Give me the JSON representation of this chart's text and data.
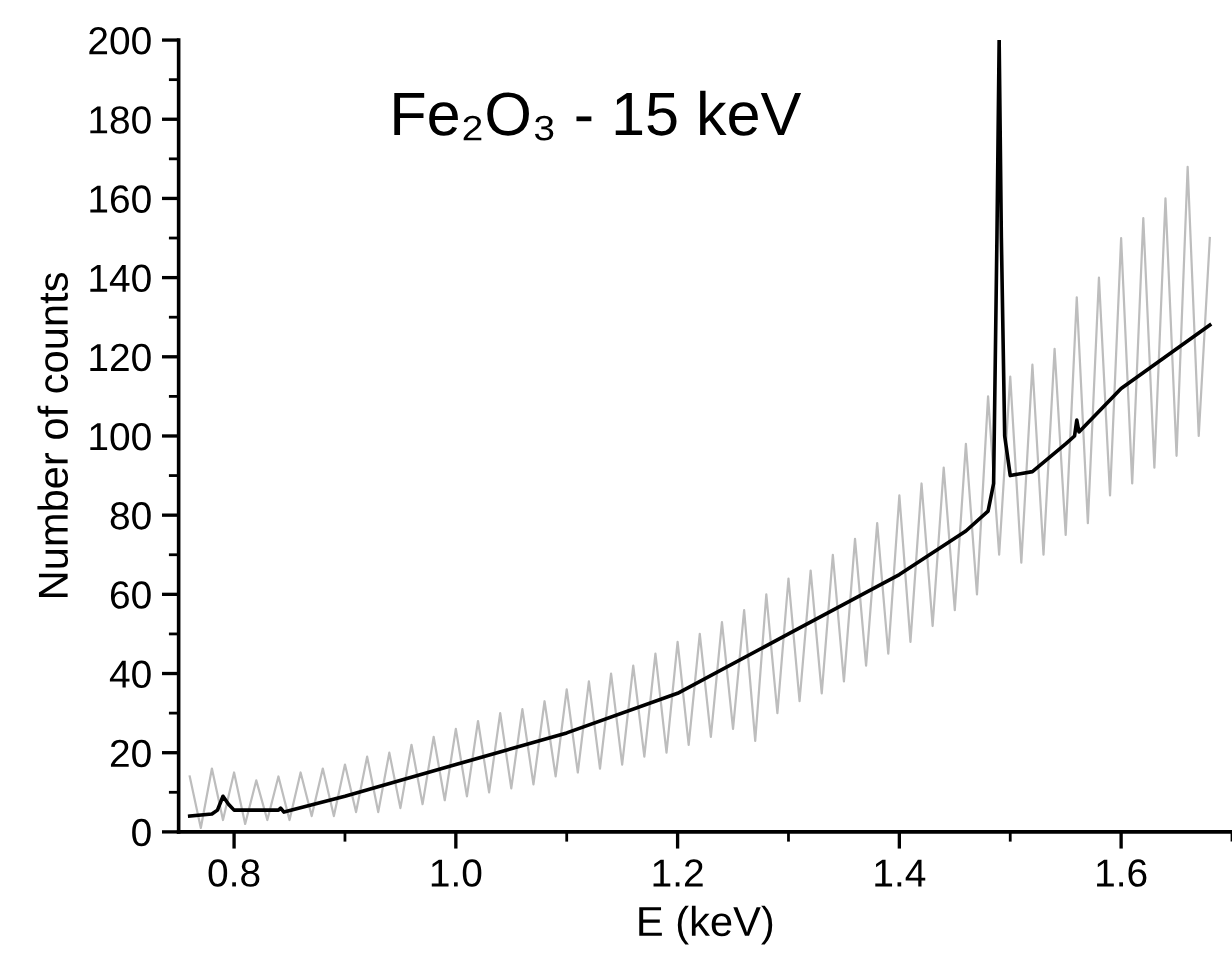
{
  "chart_data": {
    "type": "line",
    "xlabel": "E (keV)",
    "ylabel": "Number of counts",
    "annotations": [
      "Fe₂O₃ - 15 keV"
    ],
    "xlim": [
      0.75,
      1.7
    ],
    "xticks": [
      {
        "value": 0.8,
        "label": "0.8"
      },
      {
        "value": 1.0,
        "label": "1.0"
      },
      {
        "value": 1.2,
        "label": "1.2"
      },
      {
        "value": 1.4,
        "label": "1.4"
      },
      {
        "value": 1.6,
        "label": "1.6"
      }
    ],
    "ylim": [
      0,
      200
    ],
    "yticks": [
      0,
      20,
      40,
      60,
      80,
      100,
      120,
      140,
      160,
      180,
      200
    ],
    "grid": false,
    "legend": false,
    "marker": "none",
    "line_style": "solid",
    "series": [
      {
        "color": "#bdbdbd",
        "x": [
          0.76,
          0.77,
          0.78,
          0.79,
          0.8,
          0.81,
          0.82,
          0.83,
          0.84,
          0.85,
          0.86,
          0.87,
          0.88,
          0.89,
          0.9,
          0.91,
          0.92,
          0.93,
          0.94,
          0.95,
          0.96,
          0.97,
          0.98,
          0.99,
          1.0,
          1.01,
          1.02,
          1.03,
          1.04,
          1.05,
          1.06,
          1.07,
          1.08,
          1.09,
          1.1,
          1.11,
          1.12,
          1.13,
          1.14,
          1.15,
          1.16,
          1.17,
          1.18,
          1.19,
          1.2,
          1.21,
          1.22,
          1.23,
          1.24,
          1.25,
          1.26,
          1.27,
          1.28,
          1.29,
          1.3,
          1.31,
          1.32,
          1.33,
          1.34,
          1.35,
          1.36,
          1.37,
          1.38,
          1.39,
          1.4,
          1.41,
          1.42,
          1.43,
          1.44,
          1.45,
          1.46,
          1.47,
          1.48,
          1.49,
          1.5,
          1.51,
          1.52,
          1.53,
          1.54,
          1.55,
          1.56,
          1.57,
          1.58,
          1.59,
          1.6,
          1.61,
          1.62,
          1.63,
          1.64,
          1.65,
          1.66,
          1.67,
          1.68
        ],
        "values": [
          14,
          1,
          16,
          3,
          15,
          2,
          13,
          3,
          14,
          3,
          15,
          4,
          16,
          4,
          17,
          5,
          19,
          5,
          20,
          6,
          22,
          7,
          24,
          8,
          26,
          9,
          28,
          10,
          30,
          11,
          31,
          12,
          33,
          14,
          36,
          15,
          38,
          16,
          40,
          17,
          42,
          19,
          45,
          20,
          48,
          22,
          50,
          24,
          53,
          26,
          56,
          23,
          60,
          30,
          64,
          33,
          66,
          35,
          70,
          38,
          74,
          42,
          78,
          45,
          85,
          48,
          88,
          52,
          92,
          56,
          98,
          60,
          110,
          70,
          115,
          68,
          118,
          70,
          122,
          75,
          135,
          78,
          140,
          85,
          150,
          88,
          155,
          92,
          160,
          95,
          168,
          100,
          150
        ]
      },
      {
        "color": "#000000",
        "x": [
          0.76,
          0.78,
          0.785,
          0.79,
          0.795,
          0.8,
          0.84,
          0.842,
          0.845,
          0.9,
          1.0,
          1.1,
          1.2,
          1.3,
          1.4,
          1.46,
          1.48,
          1.485,
          1.488,
          1.49,
          1.492,
          1.495,
          1.5,
          1.52,
          1.55,
          1.558,
          1.56,
          1.562,
          1.6,
          1.68
        ],
        "values": [
          4,
          4.5,
          5.5,
          9,
          7,
          5.5,
          5.5,
          6,
          5,
          9,
          17,
          25,
          35,
          50,
          65,
          76,
          81,
          88,
          150,
          200,
          150,
          100,
          90,
          91,
          98,
          100,
          104,
          101,
          112,
          128
        ]
      }
    ]
  }
}
